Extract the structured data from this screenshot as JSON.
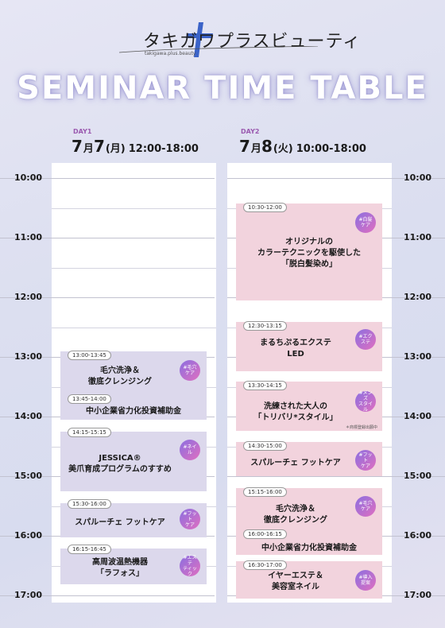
{
  "brand": {
    "name": "タキガワプラスビューティ",
    "sub": "takigawa.plus.beauty"
  },
  "title": "SEMINAR TIME TABLE",
  "days": [
    {
      "label": "DAY1",
      "month": "7",
      "m": "月",
      "day": "7",
      "dow": "(月)",
      "time": "12:00-18:00"
    },
    {
      "label": "DAY2",
      "month": "7",
      "m": "月",
      "day": "8",
      "dow": "(火)",
      "time": "10:00-18:00"
    }
  ],
  "hours": [
    "10:00",
    "11:00",
    "12:00",
    "13:00",
    "14:00",
    "15:00",
    "16:00",
    "17:00"
  ],
  "day1": [
    {
      "time": "13:00-13:45",
      "title": "毛穴洗浄＆\n徹底クレンジング",
      "tag": "#毛穴ケア"
    },
    {
      "time": "13:45-14:00",
      "title": "中小企業省力化投資補助金",
      "tag": ""
    },
    {
      "time": "14:15-15:15",
      "title": "JESSICA®\n美爪育成プログラムのすすめ",
      "tag": "#ネイル"
    },
    {
      "time": "15:30-16:00",
      "title": "スパルーチェ フットケア",
      "tag": "#フット\nケア"
    },
    {
      "time": "16:15-16:45",
      "title": "高周波温熱機器\n「ラフォス」",
      "tag": "#エステ\nティック"
    }
  ],
  "day2": [
    {
      "time": "10:30-12:00",
      "title": "オリジナルの\nカラーテクニックを駆使した\n「脱白髪染め」",
      "tag": "#白髪ケア"
    },
    {
      "time": "12:30-13:15",
      "title": "まるちぷるエクステ\nLED",
      "tag": "#エクステ"
    },
    {
      "time": "13:30-14:15",
      "title": "洗練された大人の\n「トリバリ*スタイル」",
      "tag": "#メンズ\nスタイル",
      "note": "＊商標登録出願中"
    },
    {
      "time": "14:30-15:00",
      "title": "スパルーチェ フットケア",
      "tag": "#フット\nケア"
    },
    {
      "time": "15:15-16:00",
      "title": "毛穴洗浄＆\n徹底クレンジング",
      "tag": "#毛穴ケア"
    },
    {
      "time": "16:00-16:15",
      "title": "中小企業省力化投資補助金",
      "tag": ""
    },
    {
      "time": "16:30-17:00",
      "title": "イヤーエステ＆\n美容室ネイル",
      "tag": "#導入提案"
    }
  ],
  "colors": {
    "day1_block": "#dcd8ec",
    "day2_block": "#f2d3dd",
    "day_label": "#9b5ab0",
    "tag_from": "#8b6fe0",
    "tag_to": "#e06fc0"
  }
}
